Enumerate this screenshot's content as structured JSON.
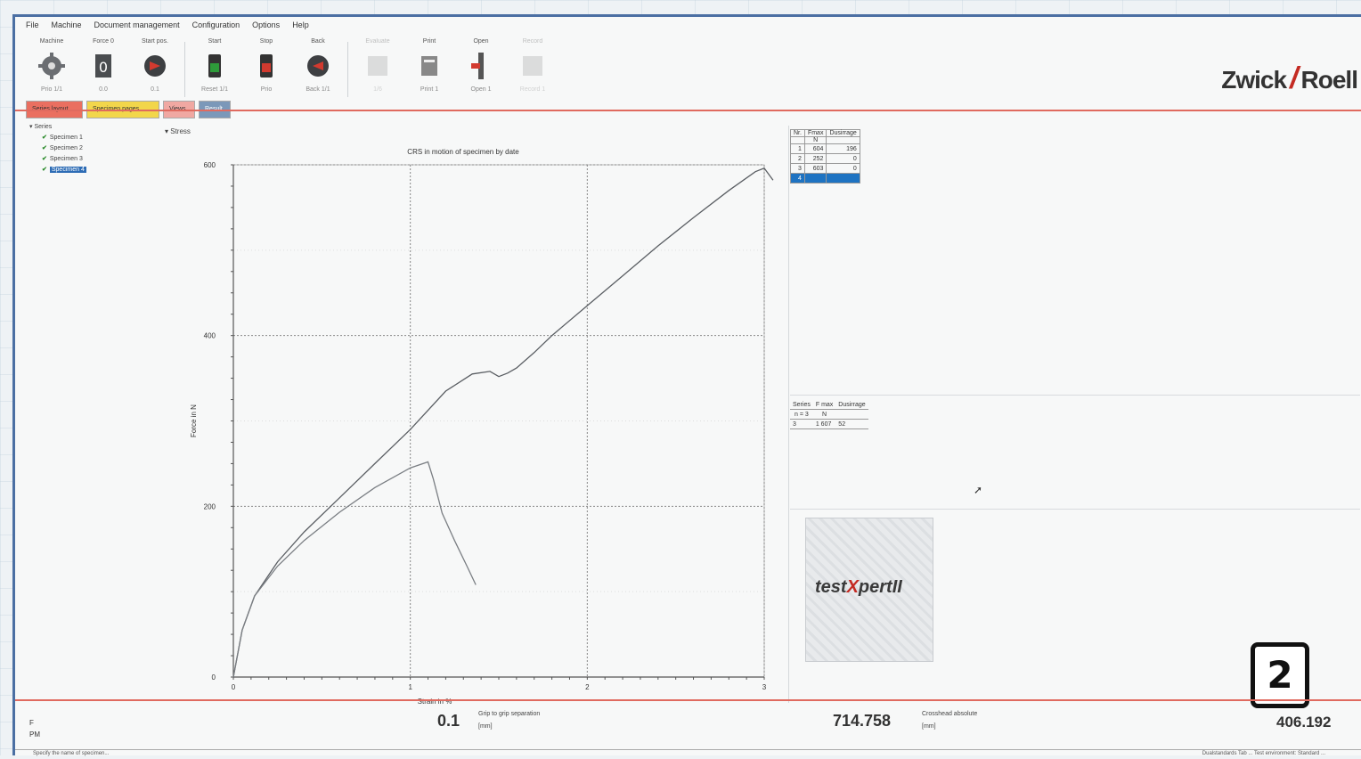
{
  "menu": [
    "File",
    "Machine",
    "Document management",
    "Configuration",
    "Options",
    "Help"
  ],
  "toolbar": [
    {
      "top": "Machine",
      "bottom": "Prio 1/1",
      "icon": "gear-icon",
      "disabled": false
    },
    {
      "top": "Force 0",
      "bottom": "0.0",
      "icon": "force-zero-icon",
      "disabled": false
    },
    {
      "top": "Start pos.",
      "bottom": "0.1",
      "icon": "start-position-icon",
      "disabled": false
    },
    {
      "top": "Start",
      "bottom": "Reset 1/1",
      "icon": "start-icon",
      "disabled": false
    },
    {
      "top": "Stop",
      "bottom": "Prio",
      "icon": "stop-icon",
      "disabled": false
    },
    {
      "top": "Back",
      "bottom": "Back 1/1",
      "icon": "back-icon",
      "disabled": false
    },
    {
      "top": "Evaluate",
      "bottom": "1/6",
      "icon": "evaluate-icon",
      "disabled": true
    },
    {
      "top": "Print",
      "bottom": "Print 1",
      "icon": "print-icon",
      "disabled": false
    },
    {
      "top": "Open",
      "bottom": "Open 1",
      "icon": "open-grips-icon",
      "disabled": false
    },
    {
      "top": "Record",
      "bottom": "Record 1",
      "icon": "record-icon",
      "disabled": true
    }
  ],
  "brand": {
    "left": "Zwick",
    "slash": "/",
    "right": "Roell"
  },
  "tabs": [
    "Series layout",
    "Specimen pages",
    "Views",
    "Result"
  ],
  "tree": {
    "root": "Series",
    "items": [
      "Specimen 1",
      "Specimen 2",
      "Specimen 3",
      "Specimen 4"
    ],
    "selected_index": 3
  },
  "chart_header": "Stress",
  "chart_data": {
    "type": "line",
    "title": "CRS in motion of specimen by date",
    "xlabel": "Strain in %",
    "ylabel": "Force in N",
    "xlim": [
      0,
      3
    ],
    "ylim": [
      0,
      600
    ],
    "xticks": [
      "0",
      "1",
      "2",
      "3"
    ],
    "yticks": [
      "0",
      "200",
      "400",
      "600"
    ],
    "grid": true,
    "series": [
      {
        "x": [
          0,
          0.05,
          0.12,
          0.25,
          0.4,
          0.6,
          0.8,
          1.0,
          1.2,
          1.35,
          1.45,
          1.5,
          1.55,
          1.6,
          1.7,
          1.8,
          2.0,
          2.2,
          2.4,
          2.6,
          2.8,
          2.95,
          3.0,
          3.05
        ],
        "y": [
          0,
          55,
          95,
          135,
          170,
          210,
          250,
          290,
          335,
          355,
          358,
          352,
          356,
          362,
          380,
          400,
          435,
          470,
          505,
          538,
          570,
          592,
          596,
          582
        ]
      },
      {
        "x": [
          0,
          0.05,
          0.12,
          0.25,
          0.4,
          0.6,
          0.8,
          1.0,
          1.1,
          1.13,
          1.18,
          1.25,
          1.32,
          1.37
        ],
        "y": [
          0,
          55,
          95,
          130,
          160,
          193,
          222,
          245,
          252,
          232,
          192,
          160,
          130,
          108
        ]
      }
    ]
  },
  "results_table": {
    "headers": [
      [
        "Nr.",
        "Fmax",
        "Dusirrage"
      ],
      [
        "",
        "N",
        ""
      ]
    ],
    "rows": [
      [
        "1",
        "604",
        "196"
      ],
      [
        "2",
        "252",
        "0"
      ],
      [
        "3",
        "603",
        "0"
      ],
      [
        "4",
        "",
        ""
      ]
    ],
    "highlight_index": 3
  },
  "stats_table": {
    "headers": [
      [
        "Series",
        "F max",
        "Dusirrage"
      ],
      [
        "n = 3",
        "N",
        ""
      ]
    ],
    "rows": [
      [
        "3",
        "1 607",
        "52"
      ]
    ]
  },
  "product_logo": {
    "pre": "test",
    "x": "X",
    "post": "pert",
    "suffix": "II"
  },
  "badge": "2",
  "statusbar": {
    "left_labels": [
      "F",
      "PM"
    ],
    "grip": {
      "value": "0.1",
      "label": "Grip to grip separation",
      "unit": "[mm]"
    },
    "crosshead": {
      "value": "714.758",
      "label": "Crosshead absolute",
      "unit": "[mm]"
    },
    "right_value": "406.192"
  },
  "footer": {
    "left": "Specify the name of specimen...",
    "right": "Dualstandards Tab ... Test environment: Standard ..."
  },
  "colors": {
    "accent_red": "#c42b23",
    "divider_red": "#e06a5f",
    "selection_blue": "#1e73c2",
    "window_blue": "#4b6fa3"
  }
}
